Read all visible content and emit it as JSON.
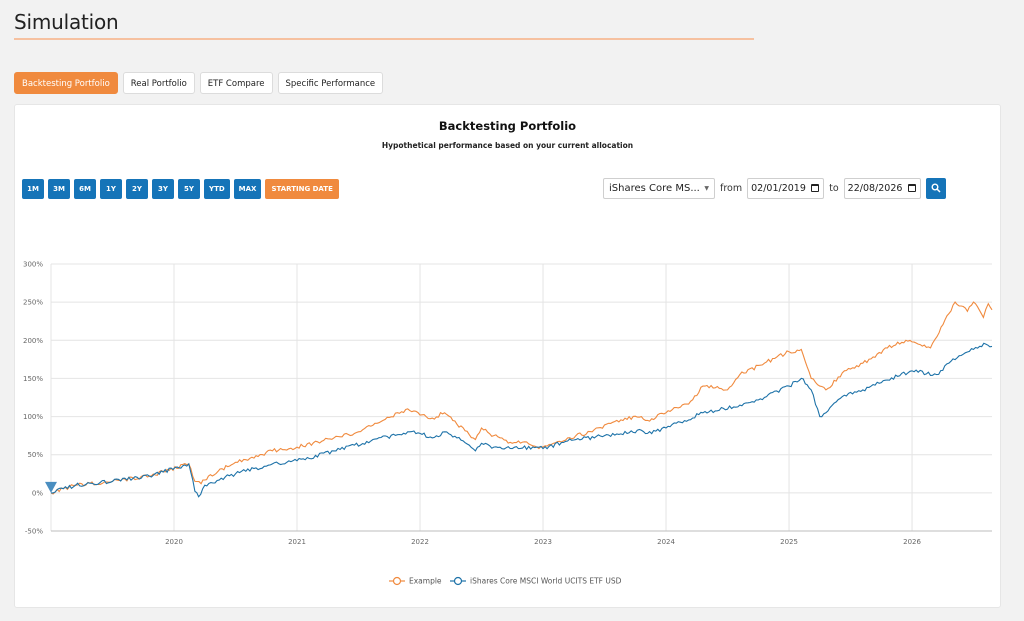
{
  "page": {
    "title": "Simulation"
  },
  "tabs": [
    {
      "label": "Backtesting Portfolio",
      "active": true
    },
    {
      "label": "Real Portfolio"
    },
    {
      "label": "ETF Compare"
    },
    {
      "label": "Specific Performance"
    }
  ],
  "card": {
    "title": "Backtesting Portfolio",
    "subtitle": "Hypothetical performance based on your current allocation"
  },
  "ranges": [
    "1M",
    "3M",
    "6M",
    "1Y",
    "2Y",
    "3Y",
    "5Y",
    "YTD",
    "MAX"
  ],
  "starting_date_label": "STARTING DATE",
  "filters": {
    "benchmark_selected": "iShares Core MS...",
    "from_label": "from",
    "from_date": "02/01/2019",
    "to_label": "to",
    "to_date": "22/08/2026"
  },
  "colors": {
    "accent": "#f08a3e",
    "primary": "#1574b8",
    "series_example": "#f08a3e",
    "series_benchmark": "#1d72a8"
  },
  "chart_data": {
    "type": "line",
    "y_unit": "%",
    "ylim": [
      -50,
      300
    ],
    "yticks": [
      -50,
      0,
      50,
      100,
      150,
      200,
      250,
      300
    ],
    "xlim": [
      2019.0,
      2026.65
    ],
    "xticks": [
      "2020",
      "2021",
      "2022",
      "2023",
      "2024",
      "2025",
      "2026"
    ],
    "grid": true,
    "legend_position": "bottom",
    "series": [
      {
        "name": "Example",
        "color": "#f08a3e",
        "x": [
          2019.0,
          2019.2,
          2019.5,
          2019.8,
          2020.12,
          2020.17,
          2020.22,
          2020.28,
          2020.5,
          2020.8,
          2021.0,
          2021.3,
          2021.5,
          2021.7,
          2021.9,
          2022.0,
          2022.1,
          2022.2,
          2022.3,
          2022.45,
          2022.5,
          2022.6,
          2022.75,
          2022.8,
          2022.95,
          2023.0,
          2023.2,
          2023.4,
          2023.6,
          2023.8,
          2023.85,
          2024.0,
          2024.2,
          2024.3,
          2024.5,
          2024.6,
          2024.8,
          2025.0,
          2025.1,
          2025.18,
          2025.25,
          2025.3,
          2025.45,
          2025.6,
          2025.8,
          2025.95,
          2026.05,
          2026.15,
          2026.22,
          2026.3,
          2026.35,
          2026.4,
          2026.45,
          2026.5,
          2026.58,
          2026.62,
          2026.65
        ],
        "y": [
          0,
          10,
          15,
          22,
          38,
          15,
          12,
          22,
          40,
          55,
          60,
          72,
          80,
          95,
          110,
          102,
          98,
          105,
          90,
          70,
          85,
          75,
          65,
          68,
          60,
          60,
          72,
          80,
          95,
          100,
          95,
          105,
          120,
          140,
          135,
          155,
          170,
          185,
          188,
          150,
          140,
          135,
          160,
          170,
          190,
          200,
          195,
          190,
          210,
          235,
          250,
          245,
          238,
          250,
          230,
          248,
          240
        ]
      },
      {
        "name": "iShares Core MSCI World UCITS ETF USD",
        "color": "#1d72a8",
        "x": [
          2019.0,
          2019.2,
          2019.5,
          2019.8,
          2020.12,
          2020.17,
          2020.2,
          2020.25,
          2020.5,
          2020.8,
          2021.0,
          2021.3,
          2021.6,
          2021.9,
          2022.0,
          2022.1,
          2022.2,
          2022.3,
          2022.45,
          2022.5,
          2022.6,
          2022.75,
          2022.95,
          2023.0,
          2023.2,
          2023.5,
          2023.8,
          2023.85,
          2024.0,
          2024.3,
          2024.6,
          2024.8,
          2025.0,
          2025.1,
          2025.18,
          2025.25,
          2025.3,
          2025.45,
          2025.6,
          2025.8,
          2026.0,
          2026.2,
          2026.3,
          2026.4,
          2026.5,
          2026.6,
          2026.65
        ],
        "y": [
          0,
          10,
          15,
          22,
          38,
          2,
          -5,
          10,
          25,
          38,
          42,
          55,
          68,
          80,
          78,
          72,
          80,
          72,
          55,
          65,
          60,
          58,
          60,
          58,
          68,
          75,
          82,
          78,
          85,
          105,
          115,
          125,
          140,
          150,
          135,
          100,
          105,
          128,
          135,
          148,
          160,
          155,
          170,
          180,
          188,
          195,
          192
        ]
      }
    ]
  }
}
